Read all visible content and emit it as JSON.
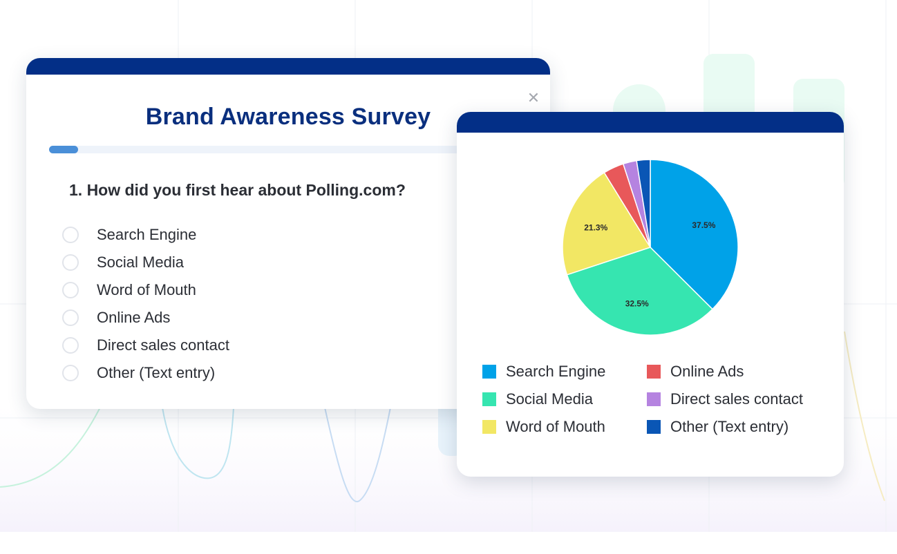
{
  "survey": {
    "title": "Brand Awareness Survey",
    "progress": 0.065,
    "question": "1. How did you first hear about Polling.com?",
    "options": [
      {
        "label": "Search Engine"
      },
      {
        "label": "Social Media"
      },
      {
        "label": "Word of Mouth"
      },
      {
        "label": "Online Ads"
      },
      {
        "label": "Direct sales contact"
      },
      {
        "label": "Other (Text entry)"
      }
    ]
  },
  "colors": {
    "header_bar": "#032f87",
    "title": "#0a2f7e",
    "progress": "#4a8fd8"
  },
  "icons": {
    "close": "close-icon"
  },
  "chart_data": {
    "type": "pie",
    "categories": [
      "Search Engine",
      "Social Media",
      "Word of Mouth",
      "Online Ads",
      "Direct sales contact",
      "Other (Text entry)"
    ],
    "values": [
      37.5,
      32.5,
      21.3,
      3.8,
      2.5,
      2.5
    ],
    "data_labels": [
      "37.5%",
      "32.5%",
      "21.3%",
      "",
      "",
      ""
    ],
    "colors": [
      "#00a2e8",
      "#36e5b0",
      "#f2e764",
      "#e8585a",
      "#b583e0",
      "#0a56b5"
    ],
    "legend_position": "bottom"
  }
}
